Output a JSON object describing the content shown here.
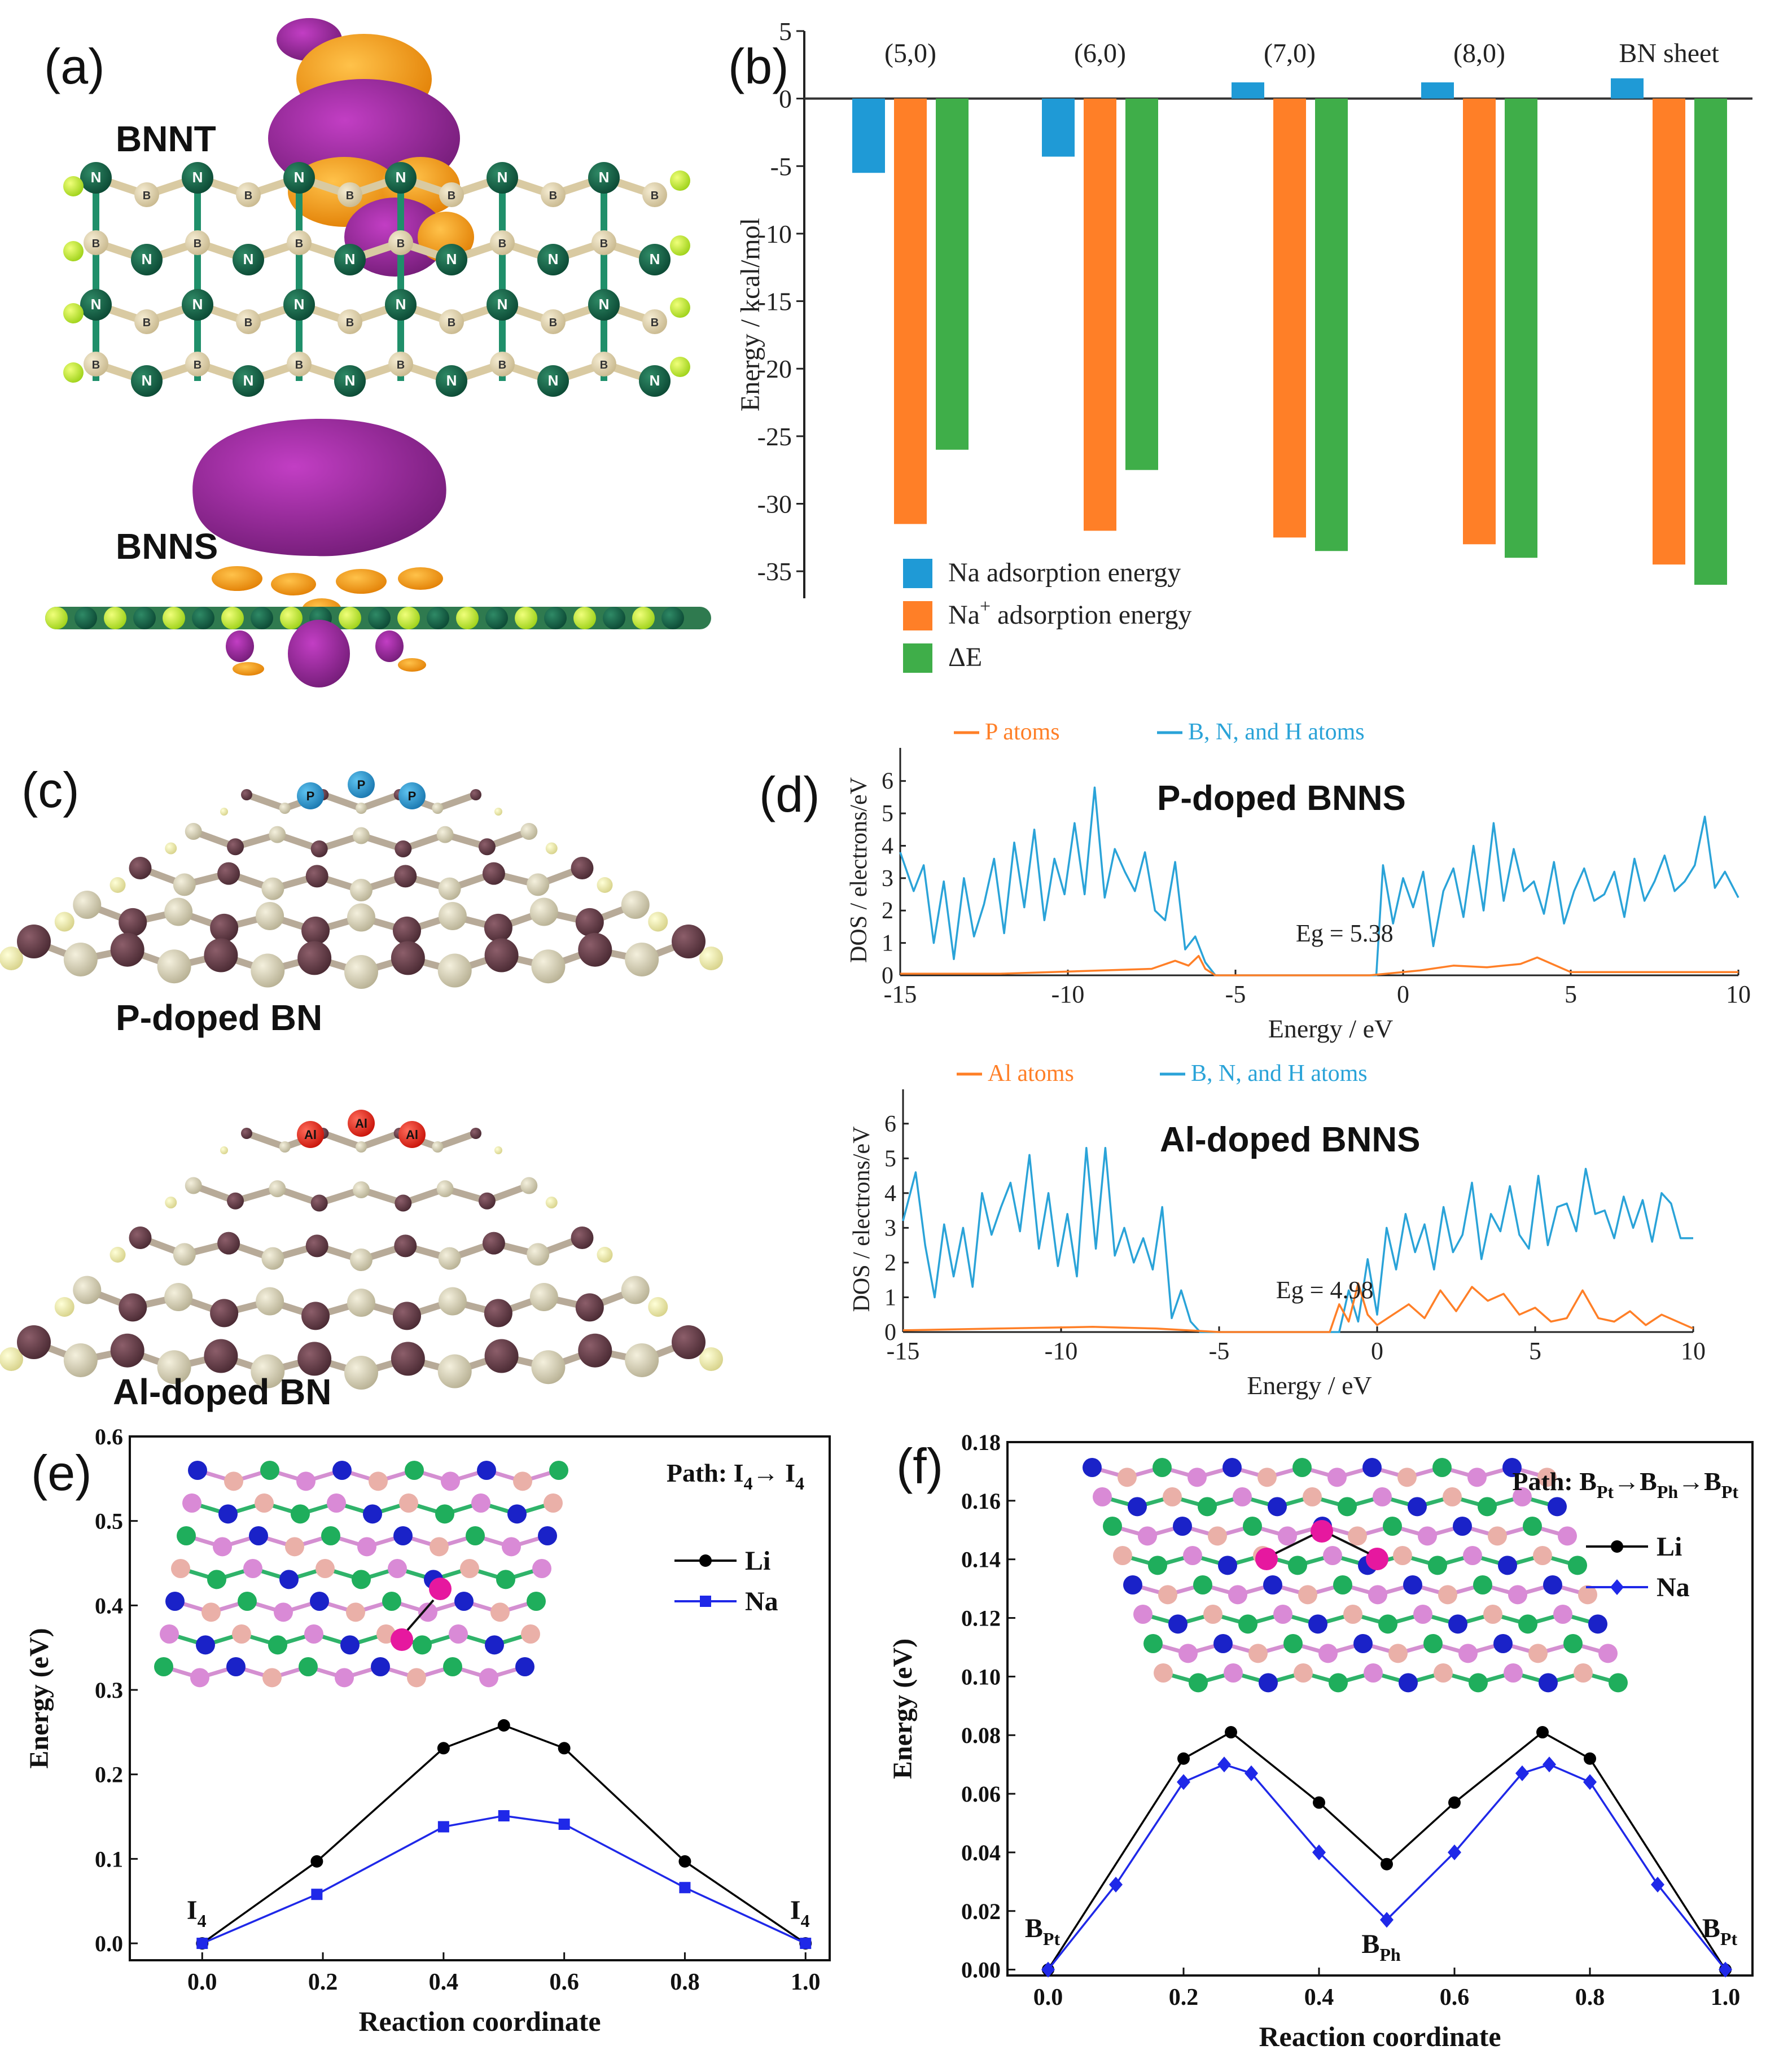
{
  "panels": {
    "a": {
      "label": "(a)",
      "structures": [
        {
          "name": "BNNT"
        },
        {
          "name": "BNNS"
        }
      ]
    },
    "c": {
      "label": "(c)",
      "structures": [
        {
          "name": "P-doped BN"
        },
        {
          "name": "Al-doped BN"
        }
      ]
    }
  },
  "chart_data": [
    {
      "panel": "(b)",
      "type": "bar",
      "title": "",
      "ylabel": "Energy / kcal/mol",
      "xlabel": "",
      "ylim": [
        -37,
        5
      ],
      "yticks": [
        5,
        0,
        -5,
        -10,
        -15,
        -20,
        -25,
        -30,
        -35
      ],
      "categories": [
        "(5,0)",
        "(6,0)",
        "(7,0)",
        "(8,0)",
        "BN sheet"
      ],
      "series": [
        {
          "name": "Na  adsorption energy",
          "color": "#1f9ad6",
          "values": [
            -5.5,
            -4.3,
            1.2,
            1.2,
            1.5
          ]
        },
        {
          "name": "Na+ adsorption energy",
          "label_base": "Na",
          "label_sup": "+",
          "label_rest": " adsorption energy",
          "color": "#ff7f27",
          "values": [
            -31.5,
            -32.0,
            -32.5,
            -33.0,
            -34.5
          ]
        },
        {
          "name": "ΔE",
          "color": "#3fae49",
          "values": [
            -26.0,
            -27.5,
            -33.5,
            -34.0,
            -36.0
          ]
        }
      ],
      "legend": "bottom-left"
    },
    {
      "panel": "(d)",
      "type": "line",
      "title": "P-doped BNNS",
      "xlabel": "Energy / eV",
      "ylabel": "DOS / electrons/eV",
      "xlim": [
        -15,
        10
      ],
      "ylim": [
        0,
        6.5
      ],
      "xticks": [
        -15,
        -10,
        -5,
        0,
        5,
        10
      ],
      "yticks": [
        0,
        1,
        2,
        3,
        4,
        5,
        6
      ],
      "annotation": "Eg = 5.38",
      "series": [
        {
          "name": "P atoms",
          "color": "#ff7f27",
          "x": [
            -15,
            -12,
            -9,
            -7.5,
            -6.8,
            -6.4,
            -6.1,
            -5.9,
            -5.6,
            -4,
            -1,
            -0.5,
            0.5,
            1.5,
            2.5,
            3.5,
            4,
            5,
            7,
            10
          ],
          "y": [
            0.05,
            0.05,
            0.15,
            0.2,
            0.45,
            0.3,
            0.6,
            0.2,
            0.0,
            0.0,
            0.0,
            0.05,
            0.15,
            0.3,
            0.25,
            0.35,
            0.55,
            0.1,
            0.1,
            0.1
          ]
        },
        {
          "name": "B, N, and H atoms",
          "color": "#2aa3d8",
          "x": [
            -15,
            -14.6,
            -14.3,
            -14,
            -13.7,
            -13.4,
            -13.1,
            -12.8,
            -12.5,
            -12.2,
            -11.9,
            -11.6,
            -11.3,
            -11,
            -10.7,
            -10.4,
            -10.1,
            -9.8,
            -9.5,
            -9.2,
            -8.9,
            -8.6,
            -8.3,
            -8,
            -7.7,
            -7.4,
            -7.1,
            -6.8,
            -6.5,
            -6.2,
            -5.9,
            -5.6,
            -0.8,
            -0.6,
            -0.3,
            0,
            0.3,
            0.6,
            0.9,
            1.2,
            1.5,
            1.8,
            2.1,
            2.4,
            2.7,
            3,
            3.3,
            3.6,
            3.9,
            4.2,
            4.5,
            4.8,
            5.1,
            5.4,
            5.7,
            6,
            6.3,
            6.6,
            6.9,
            7.2,
            7.5,
            7.8,
            8.1,
            8.4,
            8.7,
            9,
            9.3,
            9.6,
            10
          ],
          "y": [
            3.8,
            2.6,
            3.4,
            1.0,
            2.9,
            0.5,
            3.0,
            1.2,
            2.2,
            3.6,
            1.3,
            4.1,
            2.1,
            4.5,
            1.7,
            3.6,
            2.5,
            4.7,
            2.5,
            5.8,
            2.4,
            3.9,
            3.2,
            2.6,
            3.8,
            2.0,
            1.7,
            3.5,
            0.8,
            1.2,
            0.4,
            0.0,
            0.0,
            3.4,
            1.6,
            3.0,
            2.1,
            3.2,
            0.9,
            2.6,
            3.3,
            1.8,
            4.0,
            2.0,
            4.7,
            2.3,
            3.9,
            2.6,
            2.9,
            1.9,
            3.5,
            1.6,
            2.6,
            3.3,
            2.3,
            2.5,
            3.2,
            1.8,
            3.6,
            2.3,
            2.9,
            3.7,
            2.6,
            2.9,
            3.4,
            4.9,
            2.7,
            3.2,
            2.4
          ]
        }
      ],
      "legend": "top"
    },
    {
      "panel": "(d)",
      "type": "line",
      "title": "Al-doped BNNS",
      "xlabel": "Energy / eV",
      "ylabel": "DOS / electrons/eV",
      "xlim": [
        -15,
        10
      ],
      "ylim": [
        0,
        6.5
      ],
      "xticks": [
        -15,
        -10,
        -5,
        0,
        5,
        10
      ],
      "yticks": [
        0,
        1,
        2,
        3,
        4,
        5,
        6
      ],
      "annotation": "Eg = 4.98",
      "series": [
        {
          "name": "Al atoms",
          "color": "#ff7f27",
          "x": [
            -15,
            -12,
            -9,
            -7,
            -6,
            -5,
            -1.5,
            -1.2,
            -0.9,
            -0.6,
            -0.3,
            0,
            0.5,
            1,
            1.5,
            2,
            2.5,
            3,
            3.5,
            4,
            4.5,
            5,
            5.5,
            6,
            6.5,
            7,
            7.5,
            8,
            8.5,
            9,
            10
          ],
          "y": [
            0.05,
            0.1,
            0.15,
            0.1,
            0.05,
            0.0,
            0.0,
            0.8,
            0.3,
            1.4,
            0.5,
            0.2,
            0.5,
            0.8,
            0.4,
            1.2,
            0.6,
            1.3,
            0.9,
            1.1,
            0.5,
            0.7,
            0.3,
            0.4,
            1.2,
            0.4,
            0.3,
            0.6,
            0.2,
            0.5,
            0.1
          ]
        },
        {
          "name": "B, N, and H atoms",
          "color": "#2aa3d8",
          "x": [
            -15,
            -14.6,
            -14.3,
            -14,
            -13.7,
            -13.4,
            -13.1,
            -12.8,
            -12.5,
            -12.2,
            -11.9,
            -11.6,
            -11.3,
            -11,
            -10.7,
            -10.4,
            -10.1,
            -9.8,
            -9.5,
            -9.2,
            -8.9,
            -8.6,
            -8.3,
            -8,
            -7.7,
            -7.4,
            -7.1,
            -6.8,
            -6.5,
            -6.2,
            -5.9,
            -5.6,
            -1.2,
            -0.9,
            -0.6,
            -0.3,
            0,
            0.3,
            0.6,
            0.9,
            1.2,
            1.5,
            1.8,
            2.1,
            2.4,
            2.7,
            3,
            3.3,
            3.6,
            3.9,
            4.2,
            4.5,
            4.8,
            5.1,
            5.4,
            5.7,
            6,
            6.3,
            6.6,
            6.9,
            7.2,
            7.5,
            7.8,
            8.1,
            8.4,
            8.7,
            9,
            9.3,
            9.6,
            10
          ],
          "y": [
            3.2,
            4.6,
            2.5,
            1.0,
            3.1,
            1.6,
            3.0,
            1.3,
            4.0,
            2.8,
            3.6,
            4.3,
            2.9,
            5.1,
            2.4,
            4.0,
            1.9,
            3.4,
            1.6,
            5.3,
            2.4,
            5.3,
            2.2,
            3.0,
            2.0,
            2.7,
            1.8,
            3.6,
            0.4,
            1.2,
            0.3,
            0.0,
            0.0,
            1.2,
            0.3,
            2.1,
            0.5,
            3.0,
            1.8,
            3.4,
            2.3,
            3.1,
            1.8,
            3.6,
            2.3,
            2.8,
            4.3,
            2.1,
            3.4,
            2.9,
            4.2,
            2.8,
            2.4,
            4.5,
            2.5,
            3.6,
            3.7,
            2.9,
            4.7,
            3.4,
            3.5,
            2.7,
            3.9,
            3.0,
            3.8,
            2.6,
            4.0,
            3.7,
            2.7,
            2.7
          ]
        }
      ],
      "legend": "top"
    },
    {
      "panel": "(e)",
      "type": "line",
      "title": "Path: I4→ I4",
      "title_parts": {
        "prefix": "Path: I",
        "sub1": "4",
        "arrow": "→ I",
        "sub2": "4"
      },
      "xlabel": "Reaction coordinate",
      "ylabel": "Energy (eV)",
      "xlim": [
        -0.12,
        1.04
      ],
      "ylim": [
        -0.02,
        0.6
      ],
      "xticks": [
        0.0,
        0.2,
        0.4,
        0.6,
        0.8,
        1.0
      ],
      "yticks": [
        0.0,
        0.1,
        0.2,
        0.3,
        0.4,
        0.5,
        0.6
      ],
      "point_labels": [
        {
          "base": "I",
          "sub": "4",
          "x": 0.0
        },
        {
          "base": "I",
          "sub": "4",
          "x": 1.0
        }
      ],
      "series": [
        {
          "name": "Li",
          "color": "#000000",
          "marker": "circle",
          "x": [
            0.0,
            0.19,
            0.4,
            0.5,
            0.6,
            0.8,
            1.0
          ],
          "y": [
            0.0,
            0.097,
            0.231,
            0.258,
            0.231,
            0.097,
            0.0
          ]
        },
        {
          "name": "Na",
          "color": "#1f28e8",
          "marker": "square",
          "x": [
            0.0,
            0.19,
            0.4,
            0.5,
            0.6,
            0.8,
            1.0
          ],
          "y": [
            0.0,
            0.058,
            0.138,
            0.151,
            0.141,
            0.066,
            0.0
          ]
        }
      ],
      "legend": "top-right"
    },
    {
      "panel": "(f)",
      "type": "line",
      "title": "Path: BPt→BPh→BPt",
      "title_parts": {
        "prefix": "Path: B",
        "sub1": "Pt",
        "mid": "→B",
        "sub2": "Ph",
        "end": "→B",
        "sub3": "Pt"
      },
      "xlabel": "Reaction coordinate",
      "ylabel": "Energy (eV)",
      "xlim": [
        -0.06,
        1.04
      ],
      "ylim": [
        -0.002,
        0.18
      ],
      "xticks": [
        0.0,
        0.2,
        0.4,
        0.6,
        0.8,
        1.0
      ],
      "yticks": [
        0.0,
        0.02,
        0.04,
        0.06,
        0.08,
        0.1,
        0.12,
        0.14,
        0.16,
        0.18
      ],
      "ytick_labels": [
        "0.00",
        "0.02",
        "0.04",
        "0.06",
        "0.08",
        "0.10",
        "0.12",
        "0.14",
        "0.16",
        "0.18"
      ],
      "point_labels": [
        {
          "base": "B",
          "sub": "Pt",
          "x": 0.0
        },
        {
          "base": "B",
          "sub": "Ph",
          "x": 0.5
        },
        {
          "base": "B",
          "sub": "Pt",
          "x": 1.0
        }
      ],
      "series": [
        {
          "name": "Li",
          "color": "#000000",
          "marker": "circle",
          "x": [
            0.0,
            0.2,
            0.27,
            0.4,
            0.5,
            0.6,
            0.73,
            0.8,
            1.0
          ],
          "y": [
            0.0,
            0.072,
            0.081,
            0.057,
            0.036,
            0.057,
            0.081,
            0.072,
            0.0
          ]
        },
        {
          "name": "Na",
          "color": "#1f28e8",
          "marker": "diamond",
          "x": [
            0.0,
            0.1,
            0.2,
            0.26,
            0.3,
            0.4,
            0.5,
            0.6,
            0.7,
            0.74,
            0.8,
            0.9,
            1.0
          ],
          "y": [
            0.0,
            0.029,
            0.064,
            0.07,
            0.067,
            0.04,
            0.017,
            0.04,
            0.067,
            0.07,
            0.064,
            0.029,
            0.0
          ]
        }
      ],
      "legend": "top-right"
    }
  ]
}
